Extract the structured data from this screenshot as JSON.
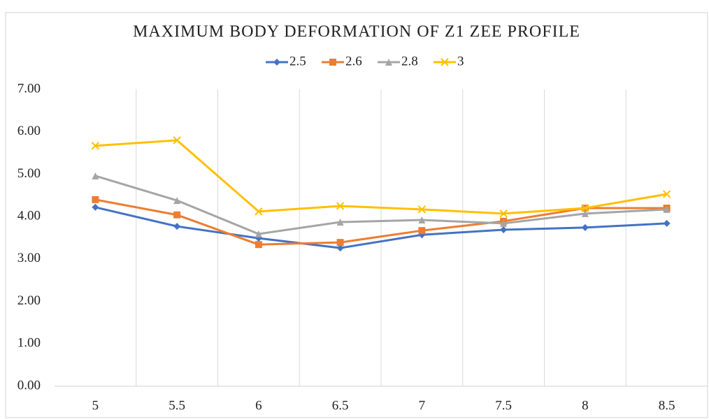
{
  "chart_data": {
    "type": "line",
    "title": "MAXIMUM BODY DEFORMATION OF Z1 ZEE PROFILE",
    "categories": [
      "5",
      "5.5",
      "6",
      "6.5",
      "7",
      "7.5",
      "8",
      "8.5"
    ],
    "series": [
      {
        "name": "2.5",
        "color": "#4472c4",
        "marker": "diamond",
        "values": [
          4.22,
          3.77,
          3.49,
          3.26,
          3.57,
          3.69,
          3.74,
          3.84
        ]
      },
      {
        "name": "2.6",
        "color": "#ed7d31",
        "marker": "square",
        "values": [
          4.4,
          4.04,
          3.34,
          3.39,
          3.67,
          3.89,
          4.2,
          4.2
        ]
      },
      {
        "name": "2.8",
        "color": "#a5a5a5",
        "marker": "triangle",
        "values": [
          4.96,
          4.38,
          3.59,
          3.87,
          3.92,
          3.84,
          4.07,
          4.17
        ]
      },
      {
        "name": "3",
        "color": "#ffc000",
        "marker": "x",
        "values": [
          5.67,
          5.8,
          4.12,
          4.25,
          4.17,
          4.07,
          4.2,
          4.53
        ]
      }
    ],
    "ylim": [
      0,
      7
    ],
    "yticks": [
      {
        "value": 0,
        "label": "0.00"
      },
      {
        "value": 1,
        "label": "1.00"
      },
      {
        "value": 2,
        "label": "2.00"
      },
      {
        "value": 3,
        "label": "3.00"
      },
      {
        "value": 4,
        "label": "4.00"
      },
      {
        "value": 5,
        "label": "5.00"
      },
      {
        "value": 6,
        "label": "6.00"
      },
      {
        "value": 7,
        "label": "7.00"
      }
    ],
    "grid": "x",
    "legend": "top"
  }
}
